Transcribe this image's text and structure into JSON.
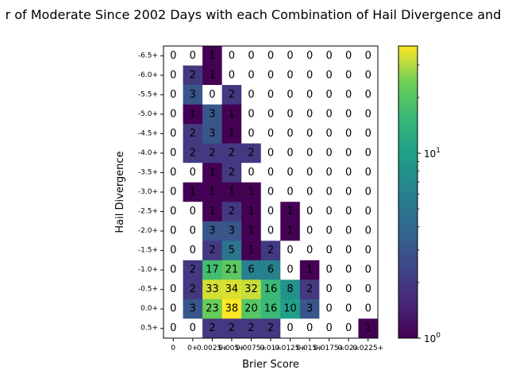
{
  "chart_data": {
    "type": "heatmap",
    "title": "r of Moderate Since 2002 Days with each Combination of Hail Divergence and",
    "xlabel": "Brier Score",
    "ylabel": "Hail Divergence",
    "x_categories": [
      "0",
      "0+",
      "0.0025+",
      "0.005+",
      "0.0075+",
      "0.01+",
      "0.0125+",
      "0.015+",
      "0.0175+",
      "0.02+",
      "0.0225+"
    ],
    "x_tick_labels": [
      "0",
      "0+",
      "0.0025+",
      "0.005+",
      "0.0075+",
      "0.01+",
      "0.0125+",
      "0.015+",
      "0.0175+",
      "0.02+",
      "0.0225+"
    ],
    "y_categories": [
      "-6.5+",
      "-6.0+",
      "-5.5+",
      "-5.0+",
      "-4.5+",
      "-4.0+",
      "-3.5+",
      "-3.0+",
      "-2.5+",
      "-2.0+",
      "-1.5+",
      "-1.0+",
      "-0.5+",
      "0.0+",
      "0.5+"
    ],
    "values": [
      [
        0,
        0,
        1,
        0,
        0,
        0,
        0,
        0,
        0,
        0,
        0
      ],
      [
        0,
        2,
        1,
        0,
        0,
        0,
        0,
        0,
        0,
        0,
        0
      ],
      [
        0,
        3,
        0,
        2,
        0,
        0,
        0,
        0,
        0,
        0,
        0
      ],
      [
        0,
        1,
        3,
        1,
        0,
        0,
        0,
        0,
        0,
        0,
        0
      ],
      [
        0,
        2,
        3,
        1,
        0,
        0,
        0,
        0,
        0,
        0,
        0
      ],
      [
        0,
        2,
        2,
        2,
        2,
        0,
        0,
        0,
        0,
        0,
        0
      ],
      [
        0,
        0,
        1,
        2,
        0,
        0,
        0,
        0,
        0,
        0,
        0
      ],
      [
        0,
        1,
        1,
        1,
        1,
        0,
        0,
        0,
        0,
        0,
        0
      ],
      [
        0,
        0,
        1,
        2,
        1,
        0,
        1,
        0,
        0,
        0,
        0
      ],
      [
        0,
        0,
        3,
        3,
        1,
        0,
        1,
        0,
        0,
        0,
        0
      ],
      [
        0,
        0,
        2,
        5,
        1,
        2,
        0,
        0,
        0,
        0,
        0
      ],
      [
        0,
        2,
        17,
        21,
        6,
        6,
        0,
        1,
        0,
        0,
        0
      ],
      [
        0,
        2,
        33,
        34,
        32,
        16,
        8,
        2,
        0,
        0,
        0
      ],
      [
        0,
        3,
        23,
        38,
        20,
        16,
        10,
        3,
        0,
        0,
        0
      ],
      [
        0,
        0,
        2,
        2,
        2,
        2,
        0,
        0,
        0,
        0,
        1
      ]
    ],
    "colormap": "viridis",
    "color_scale": "log",
    "zero_color": "#ffffff",
    "colorbar": {
      "range": [
        1,
        38
      ],
      "tick_labels": [
        {
          "value": 1,
          "text": "10",
          "exp": "0"
        },
        {
          "value": 10,
          "text": "10",
          "exp": "1"
        }
      ]
    }
  }
}
